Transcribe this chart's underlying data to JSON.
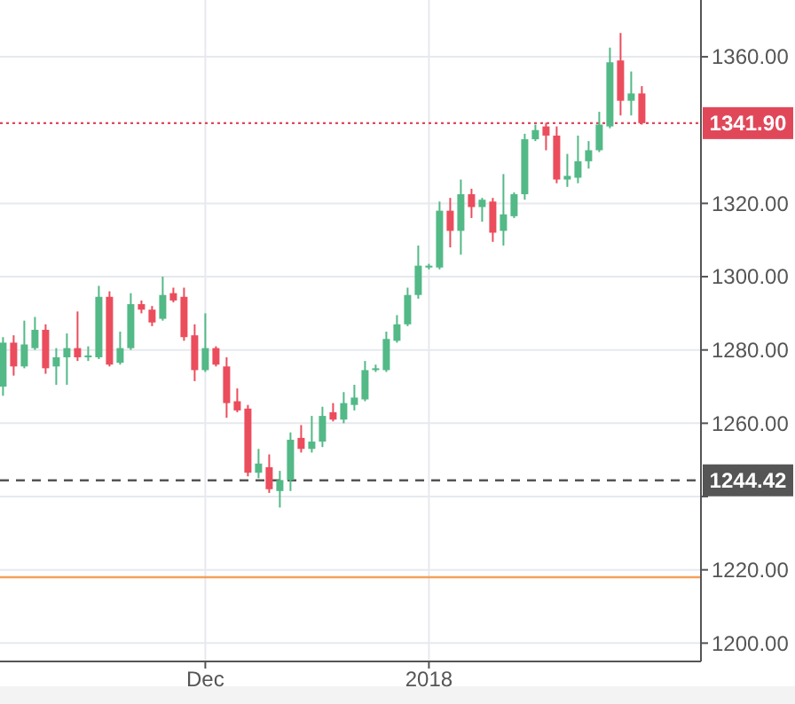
{
  "chart_data": {
    "type": "candlestick",
    "categories": [
      null,
      null,
      null,
      null,
      null,
      null,
      null,
      null,
      null,
      null,
      null,
      null,
      null,
      null,
      null,
      null,
      null,
      null,
      null,
      "Dec",
      null,
      null,
      null,
      null,
      null,
      null,
      null,
      null,
      null,
      null,
      null,
      null,
      null,
      null,
      null,
      null,
      null,
      null,
      null,
      null,
      "2018",
      null,
      null,
      null,
      null,
      null,
      null,
      null,
      null,
      null,
      null,
      null,
      null,
      null,
      null,
      null,
      null,
      null,
      null,
      null,
      null
    ],
    "ohlc": [
      [
        1270,
        1283.5,
        1267.5,
        1282
      ],
      [
        1282,
        1284,
        1273,
        1275.5
      ],
      [
        1275.5,
        1288,
        1275,
        1281.5
      ],
      [
        1280.5,
        1289,
        1280,
        1285.5
      ],
      [
        1285.5,
        1287,
        1273.5,
        1275
      ],
      [
        1275.5,
        1280.5,
        1270.5,
        1278
      ],
      [
        1278,
        1284.5,
        1270.5,
        1280.5
      ],
      [
        1280.5,
        1290.5,
        1277,
        1278
      ],
      [
        1278,
        1281,
        1277,
        1278.5
      ],
      [
        1278,
        1297.5,
        1277.5,
        1294.5
      ],
      [
        1294.5,
        1296,
        1275.5,
        1276
      ],
      [
        1276.5,
        1285,
        1276,
        1280.5
      ],
      [
        1280.5,
        1295.5,
        1280,
        1292.5
      ],
      [
        1292.5,
        1293.5,
        1290,
        1291
      ],
      [
        1291,
        1292,
        1286.5,
        1287.5
      ],
      [
        1288.5,
        1300,
        1288,
        1295
      ],
      [
        1295.5,
        1297,
        1293,
        1293.5
      ],
      [
        1294.5,
        1297,
        1282.5,
        1283.5
      ],
      [
        1284,
        1287,
        1271.5,
        1274.5
      ],
      [
        1274.5,
        1290,
        1274,
        1280.5
      ],
      [
        1280.5,
        1281,
        1275.5,
        1276
      ],
      [
        1275.5,
        1278,
        1261.5,
        1265.5
      ],
      [
        1266,
        1269.5,
        1263,
        1263.5
      ],
      [
        1264,
        1265,
        1245.5,
        1246.5
      ],
      [
        1246.5,
        1253,
        1245,
        1249
      ],
      [
        1248,
        1251.5,
        1241,
        1242
      ],
      [
        1241.5,
        1247,
        1237,
        1244.5
      ],
      [
        1244.5,
        1257.5,
        1241.5,
        1255.5
      ],
      [
        1256,
        1259.5,
        1252,
        1253
      ],
      [
        1253,
        1262,
        1252,
        1255
      ],
      [
        1255,
        1264.5,
        1253.5,
        1262
      ],
      [
        1263,
        1265.5,
        1260.5,
        1261
      ],
      [
        1261,
        1268.5,
        1260,
        1265.5
      ],
      [
        1265,
        1270.5,
        1263.5,
        1267
      ],
      [
        1266.5,
        1277,
        1266,
        1274.5
      ],
      [
        1274.5,
        1276,
        1274,
        1275
      ],
      [
        1274.5,
        1285,
        1274,
        1283
      ],
      [
        1282.5,
        1289.5,
        1282,
        1287
      ],
      [
        1287,
        1297,
        1286.5,
        1295
      ],
      [
        1295,
        1308.5,
        1294,
        1303
      ],
      [
        1302.5,
        1303.5,
        1302,
        1303
      ],
      [
        1302.5,
        1320.5,
        1302,
        1318
      ],
      [
        1318,
        1321.5,
        1308,
        1312.5
      ],
      [
        1312.5,
        1326.5,
        1306,
        1322.5
      ],
      [
        1322.5,
        1324,
        1316,
        1319
      ],
      [
        1319,
        1321.5,
        1315,
        1321
      ],
      [
        1320.5,
        1321.5,
        1309.5,
        1312
      ],
      [
        1312.5,
        1328,
        1308.5,
        1317
      ],
      [
        1316.5,
        1323,
        1316,
        1322.5
      ],
      [
        1322.5,
        1339,
        1321,
        1337.5
      ],
      [
        1337.5,
        1341.5,
        1337,
        1340
      ],
      [
        1341,
        1342,
        1334.5,
        1338.5
      ],
      [
        1338.5,
        1341,
        1325.5,
        1326.5
      ],
      [
        1326.5,
        1333.5,
        1324.5,
        1327.5
      ],
      [
        1327,
        1338.5,
        1325.5,
        1331.5
      ],
      [
        1331.5,
        1337,
        1329.5,
        1334.5
      ],
      [
        1334.5,
        1345,
        1334,
        1341.5
      ],
      [
        1341,
        1362.5,
        1340.5,
        1358.5
      ],
      [
        1359,
        1366.5,
        1344,
        1348
      ],
      [
        1348,
        1356,
        1344,
        1350
      ],
      [
        1350,
        1352,
        1341.5,
        1341.9
      ]
    ],
    "colors": [
      "#53b987",
      "#eb4d5c",
      "#53b987",
      "#53b987",
      "#eb4d5c",
      "#53b987",
      "#53b987",
      "#eb4d5c",
      "#53b987",
      "#53b987",
      "#eb4d5c",
      "#53b987",
      "#53b987",
      "#eb4d5c",
      "#eb4d5c",
      "#53b987",
      "#eb4d5c",
      "#eb4d5c",
      "#eb4d5c",
      "#53b987",
      "#eb4d5c",
      "#eb4d5c",
      "#eb4d5c",
      "#eb4d5c",
      "#53b987",
      "#eb4d5c",
      "#53b987",
      "#53b987",
      "#eb4d5c",
      "#53b987",
      "#53b987",
      "#eb4d5c",
      "#53b987",
      "#53b987",
      "#53b987",
      "#53b987",
      "#53b987",
      "#53b987",
      "#53b987",
      "#53b987",
      "#53b987",
      "#53b987",
      "#eb4d5c",
      "#53b987",
      "#eb4d5c",
      "#53b987",
      "#eb4d5c",
      "#53b987",
      "#53b987",
      "#53b987",
      "#53b987",
      "#eb4d5c",
      "#eb4d5c",
      "#53b987",
      "#53b987",
      "#53b987",
      "#53b987",
      "#53b987",
      "#eb4d5c",
      "#53b987",
      "#eb4d5c"
    ],
    "ylim": [
      1195,
      1375.5
    ],
    "yticks": [
      {
        "value": 1200,
        "label": "1200.00"
      },
      {
        "value": 1220,
        "label": "1220.00"
      },
      {
        "value": 1240,
        "label": null
      },
      {
        "value": 1260,
        "label": "1260.00"
      },
      {
        "value": 1280,
        "label": "1280.00"
      },
      {
        "value": 1300,
        "label": "1300.00"
      },
      {
        "value": 1320,
        "label": "1320.00"
      },
      {
        "value": 1360,
        "label": "1360.00"
      }
    ],
    "grid": true,
    "ref_lines": [
      {
        "axis": "y",
        "value": 1341.9,
        "label": "1341.90",
        "color": "#e0485a",
        "line_style": "dotted"
      },
      {
        "axis": "y",
        "value": 1244.42,
        "label": "1244.42",
        "color": "#555555",
        "line_style": "dashed"
      },
      {
        "axis": "y",
        "value": 1218,
        "color": "#f5a05a",
        "line_style": "solid"
      }
    ]
  }
}
